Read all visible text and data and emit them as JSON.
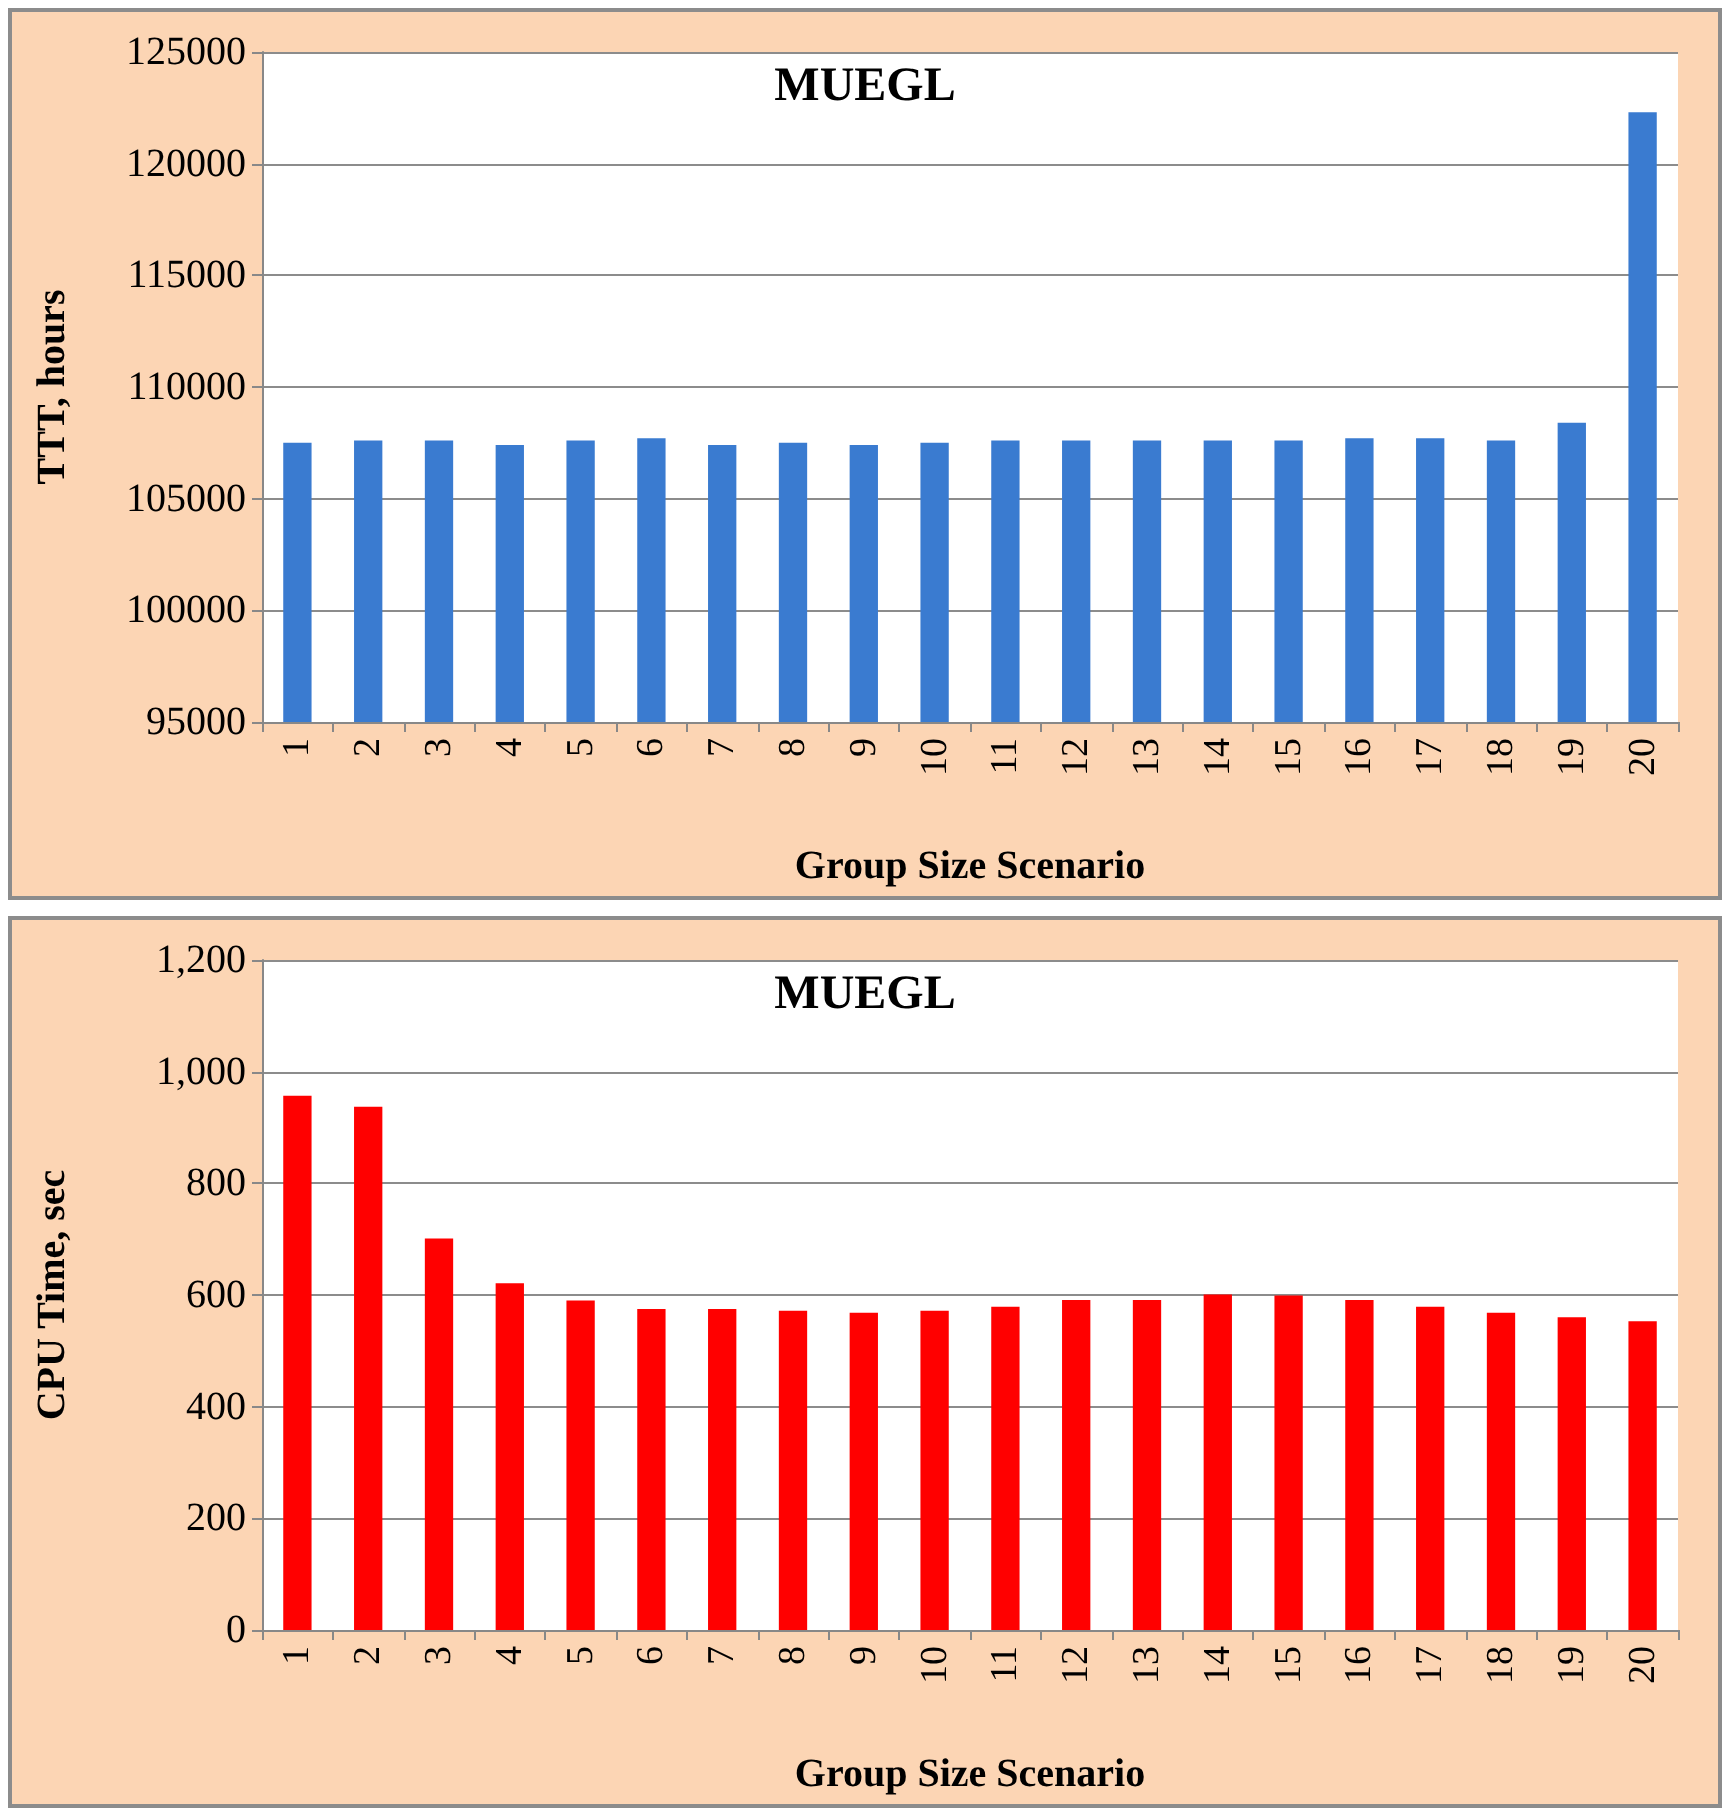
{
  "chart_data": [
    {
      "type": "bar",
      "title": "MUEGL",
      "xlabel": "Group Size Scenario",
      "ylabel": "TTT, hours",
      "categories": [
        "1",
        "2",
        "3",
        "4",
        "5",
        "6",
        "7",
        "8",
        "9",
        "10",
        "11",
        "12",
        "13",
        "14",
        "15",
        "16",
        "17",
        "18",
        "19",
        "20"
      ],
      "values": [
        107500,
        107600,
        107600,
        107400,
        107600,
        107700,
        107400,
        107500,
        107400,
        107500,
        107600,
        107600,
        107600,
        107600,
        107600,
        107700,
        107700,
        107600,
        108400,
        122300
      ],
      "color": "#3a7bd0",
      "ylim": [
        95000,
        125000
      ],
      "yticks": [
        95000,
        100000,
        105000,
        110000,
        115000,
        120000,
        125000
      ],
      "grid": "y"
    },
    {
      "type": "bar",
      "title": "MUEGL",
      "xlabel": "Group Size Scenario",
      "ylabel": "CPU Time, sec",
      "categories": [
        "1",
        "2",
        "3",
        "4",
        "5",
        "6",
        "7",
        "8",
        "9",
        "10",
        "11",
        "12",
        "13",
        "14",
        "15",
        "16",
        "17",
        "18",
        "19",
        "20"
      ],
      "values": [
        957,
        937,
        701,
        621,
        590,
        575,
        575,
        572,
        568,
        572,
        579,
        591,
        591,
        601,
        599,
        591,
        579,
        568,
        560,
        553
      ],
      "color": "#ff0000",
      "ylim": [
        0,
        1200
      ],
      "yticks": [
        0,
        200,
        400,
        600,
        800,
        {
          "value": 1000,
          "label": "1,000"
        },
        {
          "value": 1200,
          "label": "1,200"
        }
      ],
      "grid": "y"
    }
  ]
}
